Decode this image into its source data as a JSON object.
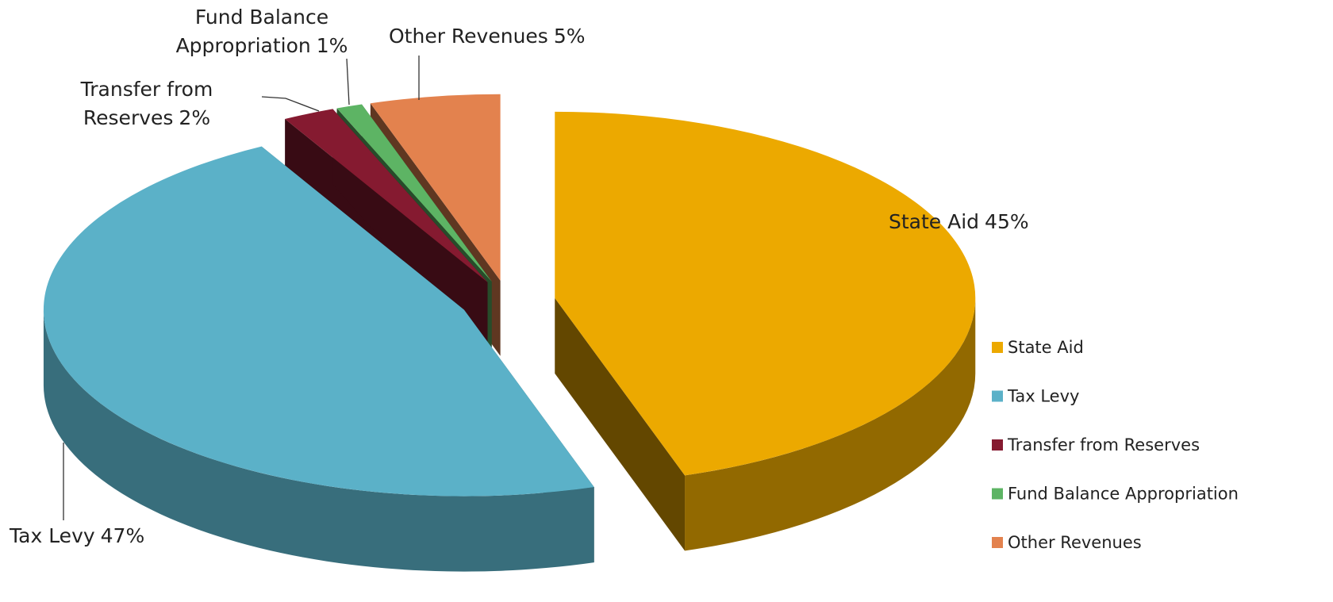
{
  "chart_data": {
    "type": "pie",
    "3d": true,
    "exploded": true,
    "categories": [
      "State Aid",
      "Tax Levy",
      "Transfer from Reserves",
      "Fund Balance Appropriation",
      "Other Revenues"
    ],
    "values": [
      45,
      47,
      2,
      1,
      5
    ],
    "value_labels": [
      "45%",
      "47%",
      "2%",
      "1%",
      "5%"
    ],
    "colors": [
      "#ECA900",
      "#5BB1C8",
      "#851A30",
      "#5DB464",
      "#E3824E"
    ],
    "legend": "right"
  }
}
